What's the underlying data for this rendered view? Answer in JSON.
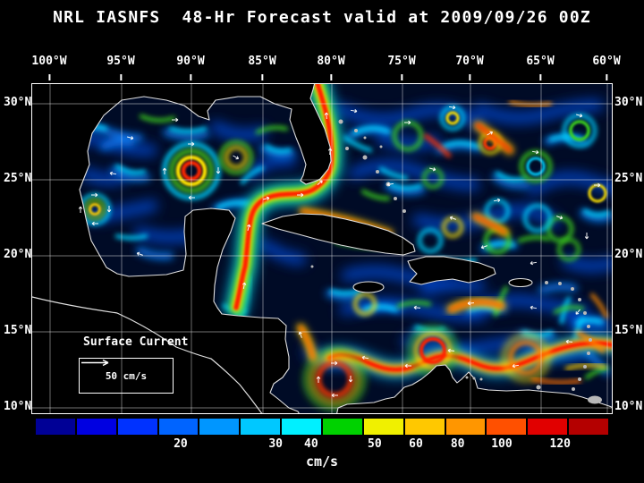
{
  "title": "NRL IASNFS  48-Hr Forecast valid at 2009/09/26 00Z",
  "axes": {
    "lon": [
      "100°W",
      "95°W",
      "90°W",
      "85°W",
      "80°W",
      "75°W",
      "70°W",
      "65°W",
      "60°W"
    ],
    "lat": [
      "30°N",
      "25°N",
      "20°N",
      "15°N",
      "10°N"
    ]
  },
  "map": {
    "overlay_label": "Surface Current",
    "scale_label": "50 cm/s"
  },
  "colorbar": {
    "unit": "cm/s",
    "colors": [
      "#000096",
      "#0000e1",
      "#0032ff",
      "#0064ff",
      "#0096ff",
      "#00c8ff",
      "#00f0ff",
      "#00d200",
      "#f0f000",
      "#ffc800",
      "#ff9600",
      "#ff5000",
      "#e10000",
      "#b40000"
    ],
    "ticks": [
      {
        "label": "20",
        "pos": 0.253
      },
      {
        "label": "30",
        "pos": 0.419
      },
      {
        "label": "40",
        "pos": 0.481
      },
      {
        "label": "50",
        "pos": 0.592
      },
      {
        "label": "60",
        "pos": 0.664
      },
      {
        "label": "80",
        "pos": 0.737
      },
      {
        "label": "100",
        "pos": 0.814
      },
      {
        "label": "120",
        "pos": 0.916
      }
    ]
  }
}
